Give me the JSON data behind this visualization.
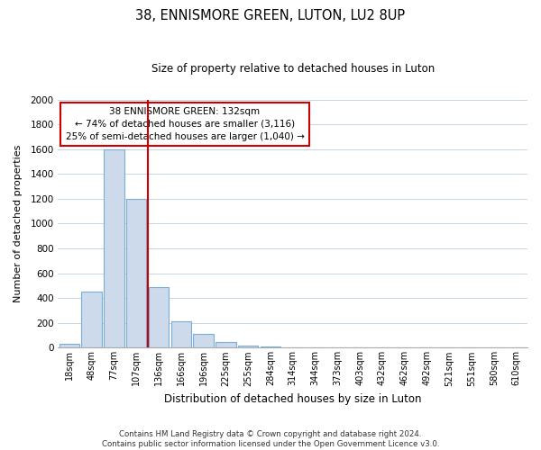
{
  "title": "38, ENNISMORE GREEN, LUTON, LU2 8UP",
  "subtitle": "Size of property relative to detached houses in Luton",
  "xlabel": "Distribution of detached houses by size in Luton",
  "ylabel": "Number of detached properties",
  "bar_labels": [
    "18sqm",
    "48sqm",
    "77sqm",
    "107sqm",
    "136sqm",
    "166sqm",
    "196sqm",
    "225sqm",
    "255sqm",
    "284sqm",
    "314sqm",
    "344sqm",
    "373sqm",
    "403sqm",
    "432sqm",
    "462sqm",
    "492sqm",
    "521sqm",
    "551sqm",
    "580sqm",
    "610sqm"
  ],
  "bar_values": [
    35,
    455,
    1600,
    1200,
    490,
    210,
    115,
    45,
    20,
    10,
    5,
    0,
    0,
    0,
    0,
    0,
    0,
    0,
    0,
    0,
    0
  ],
  "bar_color": "#ccdaeb",
  "bar_edge_color": "#7aaed6",
  "vline_x_index": 4,
  "vline_color": "#cc0000",
  "annotation_line1": "38 ENNISMORE GREEN: 132sqm",
  "annotation_line2": "← 74% of detached houses are smaller (3,116)",
  "annotation_line3": "25% of semi-detached houses are larger (1,040) →",
  "annotation_box_color": "#ffffff",
  "annotation_box_edge": "#cc0000",
  "ylim": [
    0,
    2000
  ],
  "yticks": [
    0,
    200,
    400,
    600,
    800,
    1000,
    1200,
    1400,
    1600,
    1800,
    2000
  ],
  "footer_text": "Contains HM Land Registry data © Crown copyright and database right 2024.\nContains public sector information licensed under the Open Government Licence v3.0.",
  "background_color": "#ffffff",
  "grid_color": "#c5d5e5"
}
